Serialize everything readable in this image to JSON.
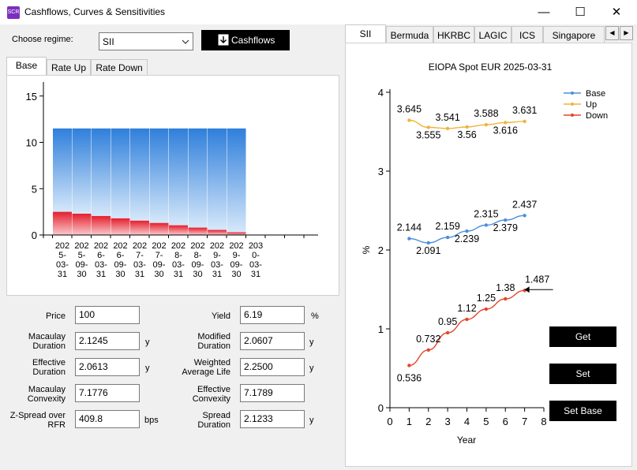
{
  "window": {
    "title": "Cashflows, Curves & Sensitivities",
    "icon_text": "SCR",
    "minimize": "—",
    "maximize": "☐",
    "close": "✕"
  },
  "controls": {
    "regime_label": "Choose regime:",
    "regime_value": "SII",
    "cashflows_button": "Cashflows"
  },
  "left_tabs": [
    "Base",
    "Rate Up",
    "Rate Down"
  ],
  "cashflow_chart": {
    "yticks": [
      "15",
      "10",
      "5",
      "0"
    ],
    "xlabels": [
      "2025-03-31",
      "2025-09-30",
      "2026-03-31",
      "2026-09-30",
      "2027-03-31",
      "2027-09-30",
      "2028-03-31",
      "2028-09-30",
      "2029-03-31",
      "2029-09-30",
      "2030-03-31"
    ]
  },
  "metrics": {
    "price": {
      "label": "Price",
      "value": "100"
    },
    "yield": {
      "label": "Yield",
      "value": "6.19",
      "unit": "%"
    },
    "macaulay_duration": {
      "label1": "Macaulay",
      "label2": "Duration",
      "value": "2.1245",
      "unit": "y"
    },
    "modified_duration": {
      "label1": "Modified",
      "label2": "Duration",
      "value": "2.0607",
      "unit": "y"
    },
    "effective_duration": {
      "label1": "Effective",
      "label2": "Duration",
      "value": "2.0613",
      "unit": "y"
    },
    "weighted_average_life": {
      "label1": "Weighted",
      "label2": "Average Life",
      "value": "2.2500",
      "unit": "y"
    },
    "macaulay_convexity": {
      "label1": "Macaulay",
      "label2": "Convexity",
      "value": "7.1776"
    },
    "effective_convexity": {
      "label1": "Effective",
      "label2": "Convexity",
      "value": "7.1789"
    },
    "z_spread": {
      "label1": "Z-Spread over",
      "label2": "RFR",
      "value": "409.8",
      "unit": "bps"
    },
    "spread_duration": {
      "label1": "Spread",
      "label2": "Duration",
      "value": "2.1233",
      "unit": "y"
    }
  },
  "right_tabs": [
    "SII",
    "Bermuda",
    "HKRBC",
    "LAGIC",
    "ICS",
    "Singapore"
  ],
  "scroll": {
    "left": "◀",
    "right": "▶"
  },
  "buttons": {
    "get": "Get",
    "set": "Set",
    "set_base": "Set Base"
  },
  "colors": {
    "base": "#4a8fdc",
    "up": "#f0b43c",
    "down": "#e2462a",
    "bar_blue": "#2f86e0",
    "bar_red": "#e8323c"
  },
  "chart_data": [
    {
      "type": "bar",
      "stacked": true,
      "categories": [
        "2025-03-31",
        "2025-09-30",
        "2026-03-31",
        "2026-09-30",
        "2027-03-31",
        "2027-09-30",
        "2028-03-31",
        "2028-09-30",
        "2029-03-31",
        "2029-09-30",
        "2030-03-31"
      ],
      "series": [
        {
          "values": [
            2.5,
            2.3,
            2.05,
            1.8,
            1.55,
            1.3,
            1.05,
            0.8,
            0.55,
            0.3,
            0
          ]
        },
        {
          "values": [
            9,
            9.2,
            9.45,
            9.7,
            9.95,
            10.2,
            10.45,
            10.7,
            10.95,
            11.2,
            0
          ]
        }
      ],
      "ylim": [
        0,
        16
      ],
      "yticks": [
        0,
        5,
        10,
        15
      ],
      "grid": false
    },
    {
      "type": "line",
      "title": "EIOPA Spot EUR 2025-03-31",
      "xlabel": "Year",
      "ylabel": "%",
      "xlim": [
        0,
        8
      ],
      "ylim": [
        0,
        4
      ],
      "xticks": [
        0,
        1,
        2,
        3,
        4,
        5,
        6,
        7,
        8
      ],
      "yticks": [
        0,
        1,
        2,
        3,
        4
      ],
      "legend": "top-right",
      "grid": false,
      "series": [
        {
          "name": "Base",
          "x": [
            1,
            2,
            3,
            4,
            5,
            6,
            7
          ],
          "values": [
            2.144,
            2.091,
            2.159,
            2.239,
            2.315,
            2.379,
            2.437
          ],
          "labels": [
            "2.144",
            "2.091",
            "2.159",
            "2.239",
            "2.315",
            "2.379",
            "2.437"
          ]
        },
        {
          "name": "Up",
          "x": [
            1,
            2,
            3,
            4,
            5,
            6,
            7
          ],
          "values": [
            3.645,
            3.555,
            3.541,
            3.56,
            3.588,
            3.616,
            3.631
          ],
          "labels": [
            "3.645",
            "3.555",
            "3.541",
            "3.56",
            "3.588",
            "3.616",
            "3.631"
          ]
        },
        {
          "name": "Down",
          "x": [
            1,
            2,
            3,
            4,
            5,
            6,
            7
          ],
          "values": [
            0.536,
            0.732,
            0.95,
            1.12,
            1.25,
            1.38,
            1.487
          ],
          "labels": [
            "0.536",
            "0.732",
            "0.95",
            "1.12",
            "1.25",
            "1.38",
            "1.487"
          ]
        }
      ]
    }
  ]
}
